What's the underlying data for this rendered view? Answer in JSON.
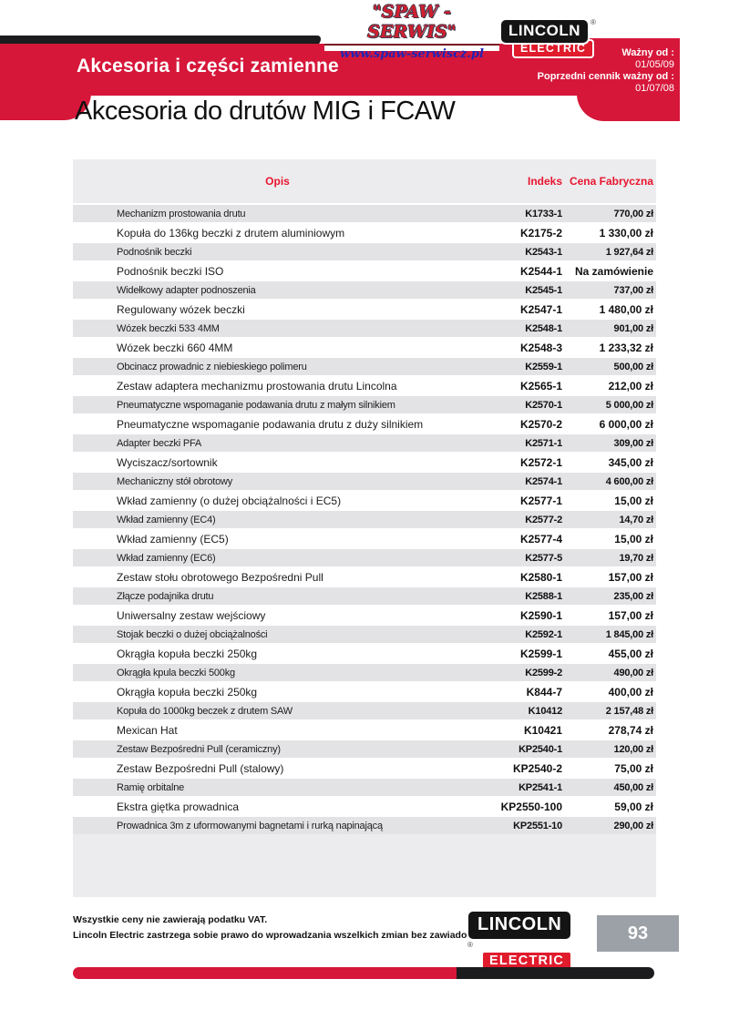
{
  "colors": {
    "accent_red": "#d6173a",
    "lincoln_red": "#e01b2c",
    "header_text_red": "#e8152f",
    "panel_gray": "#ececee",
    "stripe_gray": "#e3e3e6",
    "page_box_gray": "#9ba1a7",
    "bar_black": "#1c1c1e"
  },
  "logos": {
    "spaw": {
      "name": "\"SPAW - SERWIS\"",
      "url": "www.spaw-serwiscz.pl"
    },
    "lincoln": {
      "line1": "LINCOLN",
      "line2": "ELECTRIC",
      "registered": "®"
    }
  },
  "header": {
    "section_title": "Akcesoria i części zamienne",
    "valid_label": "Ważny od :",
    "valid_date": "01/05/09",
    "previous_label": "Poprzedni cennik ważny od :",
    "previous_date": "01/07/08",
    "page_title": "Akcesoria do drutów MIG i FCAW"
  },
  "table": {
    "columns": [
      "Opis",
      "Indeks",
      "Cena Fabryczna"
    ],
    "rows": [
      {
        "opis": "Mechanizm prostowania drutu",
        "indeks": "K1733-1",
        "cena": "770,00 zł"
      },
      {
        "opis": "Kopuła do 136kg beczki z drutem aluminiowym",
        "indeks": "K2175-2",
        "cena": "1 330,00 zł"
      },
      {
        "opis": "Podnośnik beczki",
        "indeks": "K2543-1",
        "cena": "1 927,64 zł"
      },
      {
        "opis": "Podnośnik beczki ISO",
        "indeks": "K2544-1",
        "cena": "Na zamówienie"
      },
      {
        "opis": "Widełkowy adapter podnoszenia",
        "indeks": "K2545-1",
        "cena": "737,00 zł"
      },
      {
        "opis": "Regulowany wózek beczki",
        "indeks": "K2547-1",
        "cena": "1 480,00 zł"
      },
      {
        "opis": "Wózek beczki 533 4MM",
        "indeks": "K2548-1",
        "cena": "901,00 zł"
      },
      {
        "opis": "Wózek beczki 660 4MM",
        "indeks": "K2548-3",
        "cena": "1 233,32 zł"
      },
      {
        "opis": "Obcinacz prowadnic z niebieskiego polimeru",
        "indeks": "K2559-1",
        "cena": "500,00 zł"
      },
      {
        "opis": "Zestaw adaptera mechanizmu prostowania drutu Lincolna",
        "indeks": "K2565-1",
        "cena": "212,00 zł"
      },
      {
        "opis": "Pneumatyczne wspomaganie podawania drutu z małym silnikiem",
        "indeks": "K2570-1",
        "cena": "5 000,00 zł"
      },
      {
        "opis": "Pneumatyczne wspomaganie podawania drutu z duży silnikiem",
        "indeks": "K2570-2",
        "cena": "6 000,00 zł"
      },
      {
        "opis": "Adapter beczki PFA",
        "indeks": "K2571-1",
        "cena": "309,00 zł"
      },
      {
        "opis": "Wyciszacz/sortownik",
        "indeks": "K2572-1",
        "cena": "345,00 zł"
      },
      {
        "opis": "Mechaniczny stół obrotowy",
        "indeks": "K2574-1",
        "cena": "4 600,00 zł"
      },
      {
        "opis": "Wkład zamienny (o dużej obciążalności i EC5)",
        "indeks": "K2577-1",
        "cena": "15,00 zł"
      },
      {
        "opis": "Wkład zamienny (EC4)",
        "indeks": "K2577-2",
        "cena": "14,70 zł"
      },
      {
        "opis": "Wkład zamienny (EC5)",
        "indeks": "K2577-4",
        "cena": "15,00 zł"
      },
      {
        "opis": "Wkład zamienny (EC6)",
        "indeks": "K2577-5",
        "cena": "19,70 zł"
      },
      {
        "opis": "Zestaw stołu obrotowego Bezpośredni Pull",
        "indeks": "K2580-1",
        "cena": "157,00 zł"
      },
      {
        "opis": "Złącze podajnika drutu",
        "indeks": "K2588-1",
        "cena": "235,00 zł"
      },
      {
        "opis": "Uniwersalny zestaw wejściowy",
        "indeks": "K2590-1",
        "cena": "157,00 zł"
      },
      {
        "opis": "Stojak beczki o dużej obciążalności",
        "indeks": "K2592-1",
        "cena": "1 845,00 zł"
      },
      {
        "opis": "Okrągła kopuła beczki 250kg",
        "indeks": "K2599-1",
        "cena": "455,00 zł"
      },
      {
        "opis": "Okrągła kpula beczki 500kg",
        "indeks": "K2599-2",
        "cena": "490,00 zł"
      },
      {
        "opis": "Okrągła kopuła beczki 250kg",
        "indeks": "K844-7",
        "cena": "400,00 zł"
      },
      {
        "opis": "Kopuła do 1000kg beczek z drutem SAW",
        "indeks": "K10412",
        "cena": "2 157,48 zł"
      },
      {
        "opis": "Mexican Hat",
        "indeks": "K10421",
        "cena": "278,74 zł"
      },
      {
        "opis": "Zestaw Bezpośredni Pull (ceramiczny)",
        "indeks": "KP2540-1",
        "cena": "120,00 zł"
      },
      {
        "opis": "Zestaw Bezpośredni Pull (stalowy)",
        "indeks": "KP2540-2",
        "cena": "75,00 zł"
      },
      {
        "opis": "Ramię orbitalne",
        "indeks": "KP2541-1",
        "cena": "450,00 zł"
      },
      {
        "opis": "Ekstra giętka prowadnica",
        "indeks": "KP2550-100",
        "cena": "59,00 zł"
      },
      {
        "opis": "Prowadnica 3m z uformowanymi bagnetami i rurką napinającą",
        "indeks": "KP2551-10",
        "cena": "290,00 zł"
      }
    ]
  },
  "footer": {
    "note1": "Wszystkie ceny nie zawierają podatku VAT.",
    "note2": "Lincoln Electric zastrzega sobie prawo do wprowadzania wszelkich zmian bez zawiadomienia.",
    "page_number": "93"
  }
}
